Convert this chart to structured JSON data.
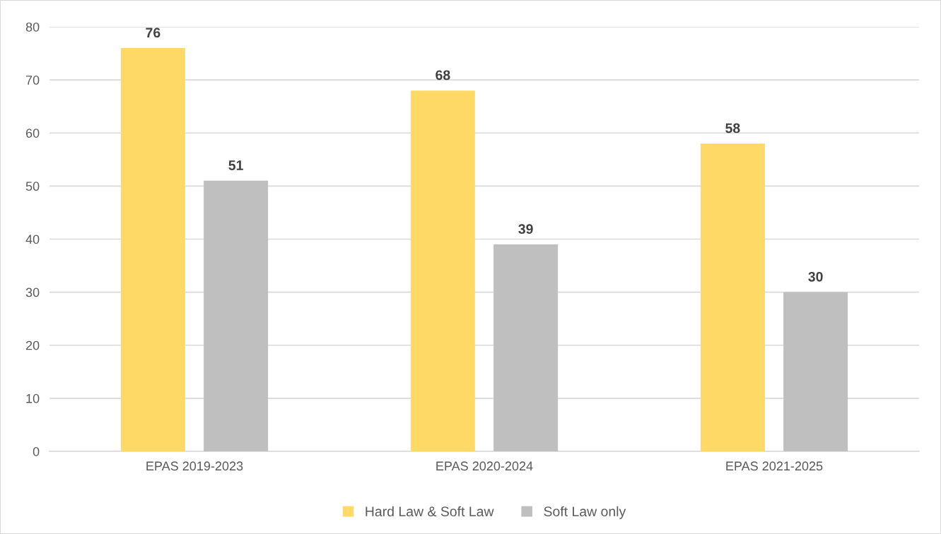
{
  "chart_data": {
    "type": "bar",
    "categories": [
      "EPAS 2019-2023",
      "EPAS 2020-2024",
      "EPAS 2021-2025"
    ],
    "series": [
      {
        "name": "Hard Law & Soft Law",
        "color": "#ffd966",
        "values": [
          76,
          68,
          58
        ]
      },
      {
        "name": "Soft Law only",
        "color": "#bfbfbf",
        "values": [
          51,
          39,
          30
        ]
      }
    ],
    "ylim": [
      0,
      80
    ],
    "yticks": [
      0,
      10,
      20,
      30,
      40,
      50,
      60,
      70,
      80
    ],
    "grid": "y",
    "legend": "bottom",
    "data_labels": true
  }
}
